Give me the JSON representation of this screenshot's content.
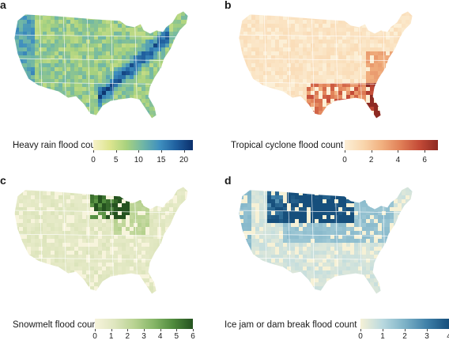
{
  "panels": [
    {
      "letter": "a",
      "legend_label": "Heavy rain flood count",
      "ticks": [
        "0",
        "5",
        "10",
        "15",
        "20"
      ],
      "tick_values": [
        0,
        5,
        10,
        15,
        20
      ],
      "max": 22,
      "colors": [
        "#f7f2c8",
        "#dde58f",
        "#a8d27e",
        "#6fb6a6",
        "#3f8fbf",
        "#1f5f9e",
        "#0b2f6b"
      ],
      "base": "#d8e5a3",
      "hot": "#2e6aa8"
    },
    {
      "letter": "b",
      "legend_label": "Tropical cyclone flood count",
      "ticks": [
        "0",
        "2",
        "4",
        "6"
      ],
      "tick_values": [
        0,
        2,
        4,
        6
      ],
      "max": 7,
      "colors": [
        "#fcefd6",
        "#f9d6ad",
        "#f1b07f",
        "#e07f57",
        "#c44b37",
        "#8e2a22"
      ],
      "base": "#f8e2c0",
      "hot": "#c9553b"
    },
    {
      "letter": "c",
      "legend_label": "Snowmelt flood count",
      "ticks": [
        "0",
        "1",
        "2",
        "3",
        "4",
        "5",
        "6"
      ],
      "tick_values": [
        0,
        1,
        2,
        3,
        4,
        5,
        6
      ],
      "max": 6,
      "colors": [
        "#f7f4dc",
        "#dfe6bf",
        "#b9d392",
        "#86b667",
        "#4f8a3c",
        "#24521f"
      ],
      "base": "#e3e6c6",
      "hot": "#2f5d24"
    },
    {
      "letter": "d",
      "legend_label": "Ice jam or dam break flood count",
      "ticks": [
        "0",
        "1",
        "2",
        "3",
        "4"
      ],
      "tick_values": [
        0,
        1,
        2,
        3,
        4
      ],
      "max": 4,
      "colors": [
        "#f6f1d6",
        "#b9d9df",
        "#7db2c7",
        "#3f80a8",
        "#164f7c"
      ],
      "base": "#a9cfd9",
      "hot": "#1c5a86"
    }
  ]
}
